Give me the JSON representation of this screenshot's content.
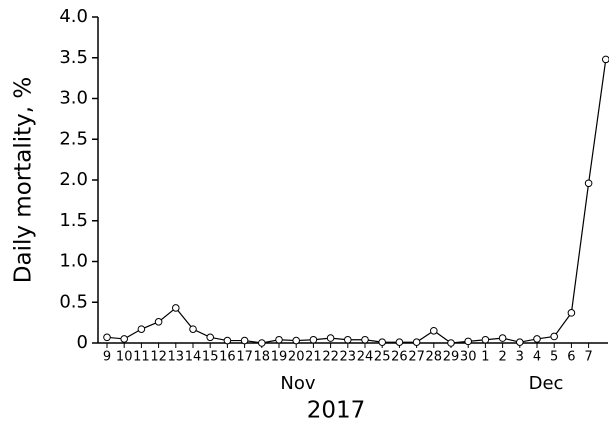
{
  "chart_data": {
    "type": "line",
    "ylabel": "Daily mortality, %",
    "xlabel": "2017",
    "annotations": [
      "Nov",
      "Dec"
    ],
    "categories": [
      "9",
      "10",
      "11",
      "12",
      "13",
      "14",
      "15",
      "16",
      "17",
      "18",
      "19",
      "20",
      "21",
      "22",
      "23",
      "24",
      "25",
      "26",
      "27",
      "28",
      "29",
      "30",
      "1",
      "2",
      "3",
      "4",
      "5",
      "6",
      "7",
      null
    ],
    "values": [
      0.07,
      0.05,
      0.17,
      0.26,
      0.43,
      0.17,
      0.07,
      0.03,
      0.03,
      0.0,
      0.04,
      0.03,
      0.04,
      0.06,
      0.04,
      0.04,
      0.01,
      0.01,
      0.01,
      0.15,
      0.0,
      0.02,
      0.04,
      0.06,
      0.01,
      0.05,
      0.08,
      0.37,
      1.96,
      3.48
    ],
    "color": "#000000",
    "ylim": [
      0,
      4
    ],
    "yticks": [
      0,
      0.5,
      {
        "value": 1,
        "label": "1.0"
      },
      1.5,
      {
        "value": 2,
        "label": "2.0"
      },
      2.5,
      {
        "value": 3,
        "label": "3.0"
      },
      3.5,
      {
        "value": 4,
        "label": "4.0"
      }
    ]
  }
}
